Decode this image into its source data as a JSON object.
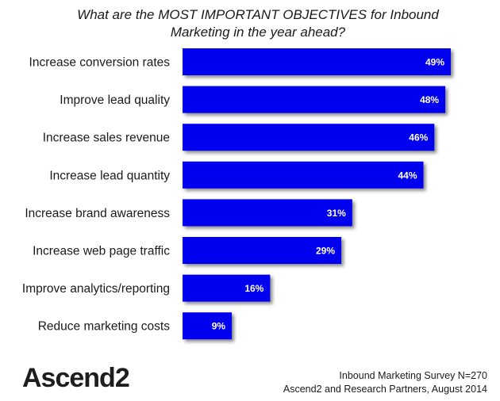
{
  "chart_data": {
    "type": "bar",
    "orientation": "horizontal",
    "title": "What are the MOST IMPORTANT OBJECTIVES for Inbound Marketing in the year ahead?",
    "categories": [
      "Increase conversion rates",
      "Improve lead quality",
      "Increase sales revenue",
      "Increase lead quantity",
      "Increase brand awareness",
      "Increase web page traffic",
      "Improve analytics/reporting",
      "Reduce marketing costs"
    ],
    "values": [
      49,
      48,
      46,
      44,
      31,
      29,
      16,
      9
    ],
    "value_labels": [
      "49%",
      "48%",
      "46%",
      "44%",
      "31%",
      "29%",
      "16%",
      "9%"
    ],
    "xlim": [
      0,
      49
    ],
    "grid": false,
    "bar_color": "#0000ee",
    "label_color": "#ffffff"
  },
  "branding": {
    "logo": "Ascend2"
  },
  "source": {
    "line1": "Inbound Marketing Survey N=270",
    "line2": "Ascend2 and Research Partners, August 2014"
  }
}
